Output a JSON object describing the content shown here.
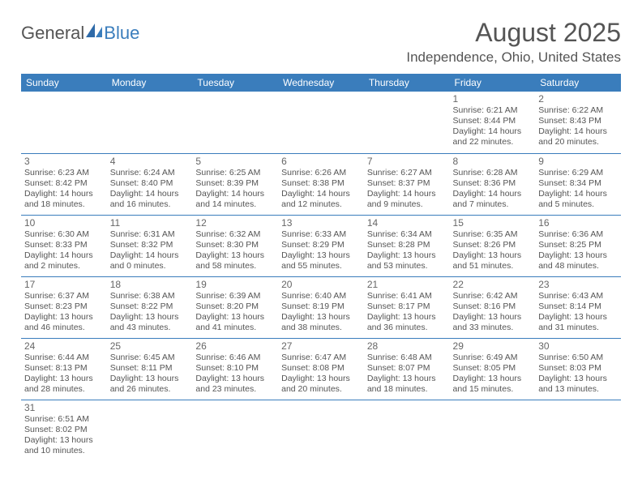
{
  "logo": {
    "text1": "General",
    "text2": "Blue"
  },
  "title": "August 2025",
  "subtitle": "Independence, Ohio, United States",
  "colors": {
    "header_bg": "#3a7dbc",
    "header_text": "#ffffff",
    "border": "#3a7dbc",
    "text": "#555555",
    "background": "#ffffff"
  },
  "weekdays": [
    "Sunday",
    "Monday",
    "Tuesday",
    "Wednesday",
    "Thursday",
    "Friday",
    "Saturday"
  ],
  "weeks": [
    [
      null,
      null,
      null,
      null,
      null,
      {
        "d": "1",
        "sr": "Sunrise: 6:21 AM",
        "ss": "Sunset: 8:44 PM",
        "dl1": "Daylight: 14 hours",
        "dl2": "and 22 minutes."
      },
      {
        "d": "2",
        "sr": "Sunrise: 6:22 AM",
        "ss": "Sunset: 8:43 PM",
        "dl1": "Daylight: 14 hours",
        "dl2": "and 20 minutes."
      }
    ],
    [
      {
        "d": "3",
        "sr": "Sunrise: 6:23 AM",
        "ss": "Sunset: 8:42 PM",
        "dl1": "Daylight: 14 hours",
        "dl2": "and 18 minutes."
      },
      {
        "d": "4",
        "sr": "Sunrise: 6:24 AM",
        "ss": "Sunset: 8:40 PM",
        "dl1": "Daylight: 14 hours",
        "dl2": "and 16 minutes."
      },
      {
        "d": "5",
        "sr": "Sunrise: 6:25 AM",
        "ss": "Sunset: 8:39 PM",
        "dl1": "Daylight: 14 hours",
        "dl2": "and 14 minutes."
      },
      {
        "d": "6",
        "sr": "Sunrise: 6:26 AM",
        "ss": "Sunset: 8:38 PM",
        "dl1": "Daylight: 14 hours",
        "dl2": "and 12 minutes."
      },
      {
        "d": "7",
        "sr": "Sunrise: 6:27 AM",
        "ss": "Sunset: 8:37 PM",
        "dl1": "Daylight: 14 hours",
        "dl2": "and 9 minutes."
      },
      {
        "d": "8",
        "sr": "Sunrise: 6:28 AM",
        "ss": "Sunset: 8:36 PM",
        "dl1": "Daylight: 14 hours",
        "dl2": "and 7 minutes."
      },
      {
        "d": "9",
        "sr": "Sunrise: 6:29 AM",
        "ss": "Sunset: 8:34 PM",
        "dl1": "Daylight: 14 hours",
        "dl2": "and 5 minutes."
      }
    ],
    [
      {
        "d": "10",
        "sr": "Sunrise: 6:30 AM",
        "ss": "Sunset: 8:33 PM",
        "dl1": "Daylight: 14 hours",
        "dl2": "and 2 minutes."
      },
      {
        "d": "11",
        "sr": "Sunrise: 6:31 AM",
        "ss": "Sunset: 8:32 PM",
        "dl1": "Daylight: 14 hours",
        "dl2": "and 0 minutes."
      },
      {
        "d": "12",
        "sr": "Sunrise: 6:32 AM",
        "ss": "Sunset: 8:30 PM",
        "dl1": "Daylight: 13 hours",
        "dl2": "and 58 minutes."
      },
      {
        "d": "13",
        "sr": "Sunrise: 6:33 AM",
        "ss": "Sunset: 8:29 PM",
        "dl1": "Daylight: 13 hours",
        "dl2": "and 55 minutes."
      },
      {
        "d": "14",
        "sr": "Sunrise: 6:34 AM",
        "ss": "Sunset: 8:28 PM",
        "dl1": "Daylight: 13 hours",
        "dl2": "and 53 minutes."
      },
      {
        "d": "15",
        "sr": "Sunrise: 6:35 AM",
        "ss": "Sunset: 8:26 PM",
        "dl1": "Daylight: 13 hours",
        "dl2": "and 51 minutes."
      },
      {
        "d": "16",
        "sr": "Sunrise: 6:36 AM",
        "ss": "Sunset: 8:25 PM",
        "dl1": "Daylight: 13 hours",
        "dl2": "and 48 minutes."
      }
    ],
    [
      {
        "d": "17",
        "sr": "Sunrise: 6:37 AM",
        "ss": "Sunset: 8:23 PM",
        "dl1": "Daylight: 13 hours",
        "dl2": "and 46 minutes."
      },
      {
        "d": "18",
        "sr": "Sunrise: 6:38 AM",
        "ss": "Sunset: 8:22 PM",
        "dl1": "Daylight: 13 hours",
        "dl2": "and 43 minutes."
      },
      {
        "d": "19",
        "sr": "Sunrise: 6:39 AM",
        "ss": "Sunset: 8:20 PM",
        "dl1": "Daylight: 13 hours",
        "dl2": "and 41 minutes."
      },
      {
        "d": "20",
        "sr": "Sunrise: 6:40 AM",
        "ss": "Sunset: 8:19 PM",
        "dl1": "Daylight: 13 hours",
        "dl2": "and 38 minutes."
      },
      {
        "d": "21",
        "sr": "Sunrise: 6:41 AM",
        "ss": "Sunset: 8:17 PM",
        "dl1": "Daylight: 13 hours",
        "dl2": "and 36 minutes."
      },
      {
        "d": "22",
        "sr": "Sunrise: 6:42 AM",
        "ss": "Sunset: 8:16 PM",
        "dl1": "Daylight: 13 hours",
        "dl2": "and 33 minutes."
      },
      {
        "d": "23",
        "sr": "Sunrise: 6:43 AM",
        "ss": "Sunset: 8:14 PM",
        "dl1": "Daylight: 13 hours",
        "dl2": "and 31 minutes."
      }
    ],
    [
      {
        "d": "24",
        "sr": "Sunrise: 6:44 AM",
        "ss": "Sunset: 8:13 PM",
        "dl1": "Daylight: 13 hours",
        "dl2": "and 28 minutes."
      },
      {
        "d": "25",
        "sr": "Sunrise: 6:45 AM",
        "ss": "Sunset: 8:11 PM",
        "dl1": "Daylight: 13 hours",
        "dl2": "and 26 minutes."
      },
      {
        "d": "26",
        "sr": "Sunrise: 6:46 AM",
        "ss": "Sunset: 8:10 PM",
        "dl1": "Daylight: 13 hours",
        "dl2": "and 23 minutes."
      },
      {
        "d": "27",
        "sr": "Sunrise: 6:47 AM",
        "ss": "Sunset: 8:08 PM",
        "dl1": "Daylight: 13 hours",
        "dl2": "and 20 minutes."
      },
      {
        "d": "28",
        "sr": "Sunrise: 6:48 AM",
        "ss": "Sunset: 8:07 PM",
        "dl1": "Daylight: 13 hours",
        "dl2": "and 18 minutes."
      },
      {
        "d": "29",
        "sr": "Sunrise: 6:49 AM",
        "ss": "Sunset: 8:05 PM",
        "dl1": "Daylight: 13 hours",
        "dl2": "and 15 minutes."
      },
      {
        "d": "30",
        "sr": "Sunrise: 6:50 AM",
        "ss": "Sunset: 8:03 PM",
        "dl1": "Daylight: 13 hours",
        "dl2": "and 13 minutes."
      }
    ],
    [
      {
        "d": "31",
        "sr": "Sunrise: 6:51 AM",
        "ss": "Sunset: 8:02 PM",
        "dl1": "Daylight: 13 hours",
        "dl2": "and 10 minutes."
      },
      null,
      null,
      null,
      null,
      null,
      null
    ]
  ]
}
